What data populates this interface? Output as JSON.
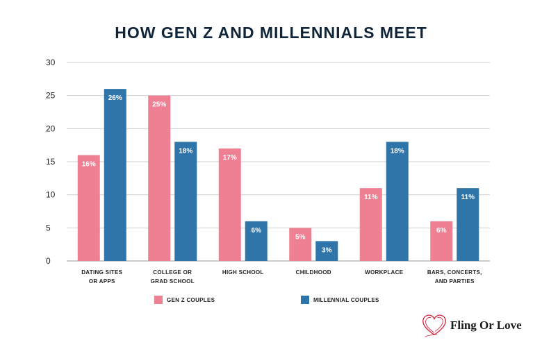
{
  "chart_data": {
    "type": "bar",
    "title": "HOW GEN Z AND MILLENNIALS MEET",
    "categories": [
      [
        "DATING SITES",
        "OR APPS"
      ],
      [
        "COLLEGE OR",
        "GRAD SCHOOL"
      ],
      [
        "HIGH SCHOOL"
      ],
      [
        "CHILDHOOD"
      ],
      [
        "WORKPLACE"
      ],
      [
        "BARS, CONCERTS,",
        "AND PARTIES"
      ]
    ],
    "series": [
      {
        "name": "GEN Z COUPLES",
        "color": "#ef8094",
        "values": [
          16,
          25,
          17,
          5,
          11,
          6
        ],
        "labels": [
          "16%",
          "25%",
          "17%",
          "5%",
          "11%",
          "6%"
        ]
      },
      {
        "name": "MILLENNIAL COUPLES",
        "color": "#2f75aa",
        "values": [
          26,
          18,
          6,
          3,
          18,
          11
        ],
        "labels": [
          "26%",
          "18%",
          "6%",
          "3%",
          "18%",
          "11%"
        ]
      }
    ],
    "ylim": [
      0,
      30
    ],
    "yticks": [
      0,
      5,
      10,
      15,
      20,
      25,
      30
    ],
    "grid": true,
    "legend_position": "bottom"
  },
  "logo": {
    "text": "Fling Or Love",
    "icon": "heart-icon",
    "color": "#d6223c"
  }
}
